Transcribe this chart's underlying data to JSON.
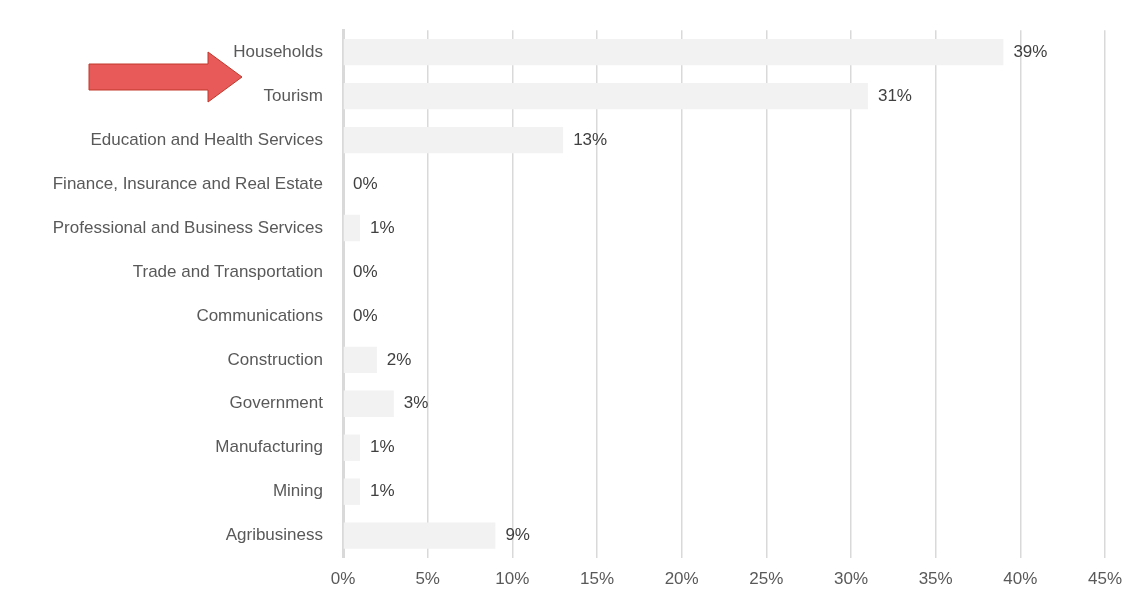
{
  "chart_data": {
    "type": "bar",
    "orientation": "horizontal",
    "categories": [
      "Households",
      "Tourism",
      "Education and Health Services",
      "Finance, Insurance and Real Estate",
      "Professional and Business Services",
      "Trade and Transportation",
      "Communications",
      "Construction",
      "Government",
      "Manufacturing",
      "Mining",
      "Agribusiness"
    ],
    "values": [
      39,
      31,
      13,
      0,
      1,
      0,
      0,
      2,
      3,
      1,
      1,
      9
    ],
    "value_labels": [
      "39%",
      "31%",
      "13%",
      "0%",
      "1%",
      "0%",
      "0%",
      "2%",
      "3%",
      "1%",
      "1%",
      "9%"
    ],
    "color": "#f2f2f2",
    "xlim": [
      0,
      45
    ],
    "xticks": [
      {
        "value": 0,
        "label": "0%"
      },
      {
        "value": 5,
        "label": "5%"
      },
      {
        "value": 10,
        "label": "10%"
      },
      {
        "value": 15,
        "label": "15%"
      },
      {
        "value": 20,
        "label": "20%"
      },
      {
        "value": 25,
        "label": "25%"
      },
      {
        "value": 30,
        "label": "30%"
      },
      {
        "value": 35,
        "label": "35%"
      },
      {
        "value": 40,
        "label": "40%"
      },
      {
        "value": 45,
        "label": "45%"
      }
    ],
    "grid": "x",
    "legend": false
  }
}
